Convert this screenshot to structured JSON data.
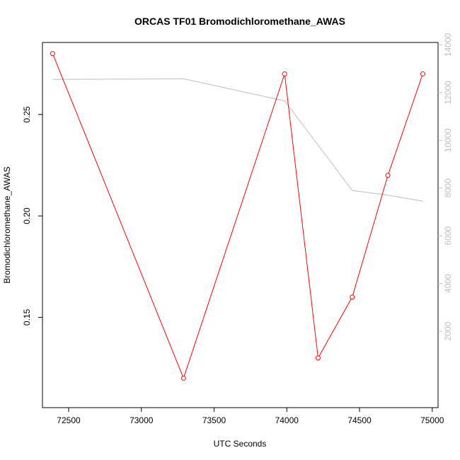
{
  "chart_data": {
    "type": "line",
    "title": "ORCAS TF01 Bromodichloromethane_AWAS",
    "xlabel": "UTC Seconds",
    "ylabel": "Bromodichloromethane_AWAS",
    "y2label": "",
    "xlim": [
      72320,
      75040
    ],
    "ylim": [
      0.1055,
      0.2855
    ],
    "y2lim": [
      -1200,
      14100
    ],
    "xticks": [
      72500,
      73000,
      73500,
      74000,
      74500,
      75000
    ],
    "yticks": [
      0.15,
      0.2,
      0.25
    ],
    "ytick_labels": [
      "0.15",
      "0.20",
      "0.25"
    ],
    "y2ticks": [
      2000,
      4000,
      6000,
      8000,
      10000,
      12000,
      14000
    ],
    "grid": false,
    "series": [
      {
        "axis": "left",
        "color": "#ff0000",
        "markers": "open-circle",
        "x": [
          72390,
          73290,
          73985,
          74215,
          74450,
          74695,
          74935
        ],
        "y": [
          0.28,
          0.12,
          0.27,
          0.13,
          0.16,
          0.22,
          0.27
        ]
      },
      {
        "axis": "right",
        "color": "#bebebe",
        "markers": "none",
        "x": [
          72390,
          73290,
          73985,
          74215,
          74450,
          74695,
          74935
        ],
        "y": [
          12550,
          12580,
          11650,
          9800,
          7900,
          7700,
          7450
        ]
      }
    ],
    "colors": {
      "axis": "#000000",
      "right_axis": "#bebebe",
      "series_left": "#ff0000",
      "series_right": "#bebebe"
    }
  }
}
